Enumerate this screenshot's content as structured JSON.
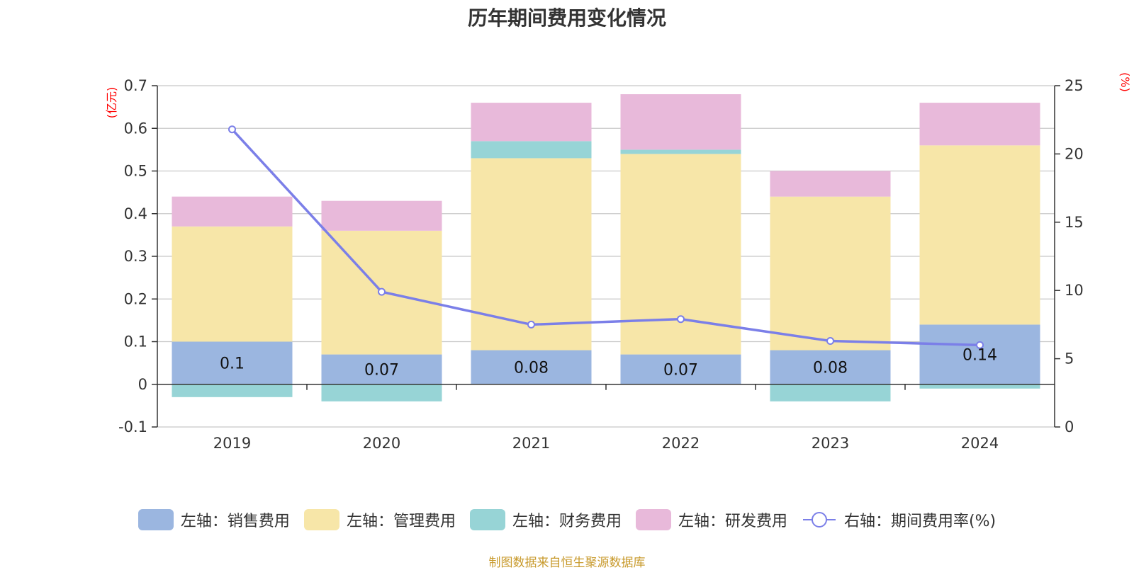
{
  "chart_data": {
    "type": "bar",
    "title": "历年期间费用变化情况",
    "categories": [
      "2019",
      "2020",
      "2021",
      "2022",
      "2023",
      "2024"
    ],
    "left_axis": {
      "unit": "(亿元)",
      "ylim": [
        -0.1,
        0.7
      ],
      "ticks": [
        -0.1,
        0,
        0.1,
        0.2,
        0.3,
        0.4,
        0.5,
        0.6,
        0.7
      ],
      "tick_labels": [
        "-0.1",
        "0",
        "0.1",
        "0.2",
        "0.3",
        "0.4",
        "0.5",
        "0.6",
        "0.7"
      ]
    },
    "right_axis": {
      "unit": "(%)",
      "ylim": [
        0,
        25
      ],
      "ticks": [
        0,
        5,
        10,
        15,
        20,
        25
      ]
    },
    "stacked": true,
    "grid": true,
    "legend_position": "bottom",
    "series": [
      {
        "name": "左轴：销售费用",
        "type": "bar",
        "axis": "left",
        "color": "#9bb6e0",
        "values": [
          0.1,
          0.07,
          0.08,
          0.07,
          0.08,
          0.14
        ],
        "data_labels": [
          "0.1",
          "0.07",
          "0.08",
          "0.07",
          "0.08",
          "0.14"
        ]
      },
      {
        "name": "左轴：管理费用",
        "type": "bar",
        "axis": "left",
        "color": "#f7e6a8",
        "values": [
          0.27,
          0.29,
          0.45,
          0.47,
          0.36,
          0.42
        ]
      },
      {
        "name": "左轴：财务费用",
        "type": "bar",
        "axis": "left",
        "color": "#97d4d6",
        "values": [
          -0.03,
          -0.04,
          0.04,
          0.01,
          -0.04,
          -0.01
        ]
      },
      {
        "name": "左轴：研发费用",
        "type": "bar",
        "axis": "left",
        "color": "#e8b9da",
        "values": [
          0.07,
          0.07,
          0.09,
          0.13,
          0.06,
          0.1
        ]
      },
      {
        "name": "右轴：期间费用率(%)",
        "type": "line",
        "axis": "right",
        "color": "#7b7fe8",
        "values": [
          21.8,
          9.9,
          7.5,
          7.9,
          6.3,
          6.0
        ]
      }
    ]
  },
  "footer": {
    "note": "制图数据来自恒生聚源数据库"
  }
}
